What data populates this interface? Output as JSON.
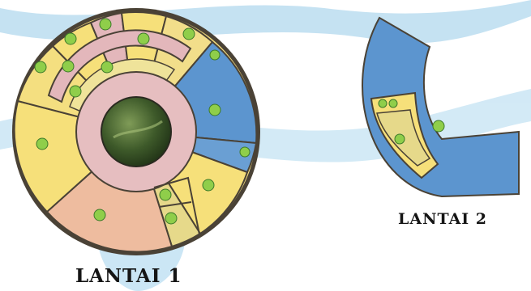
{
  "floor_1": {
    "label": "LANTAI 1",
    "zone_colors": {
      "yellow": "#f6e07a",
      "pale_yellow": "#efe39a",
      "pink": "#e3b7bb",
      "salmon": "#eebc9f",
      "blue": "#5c95cf",
      "outline": "#4a4236",
      "marker": "#8fce4a"
    },
    "center_image": "globe-icon"
  },
  "floor_2": {
    "label": "LANTAI 2",
    "zone_colors": {
      "blue": "#5c95cf",
      "yellow": "#f6e07a",
      "outline": "#4a4236",
      "marker": "#8fce4a"
    }
  },
  "background": {
    "watermark_color": "#5aa9d6"
  }
}
